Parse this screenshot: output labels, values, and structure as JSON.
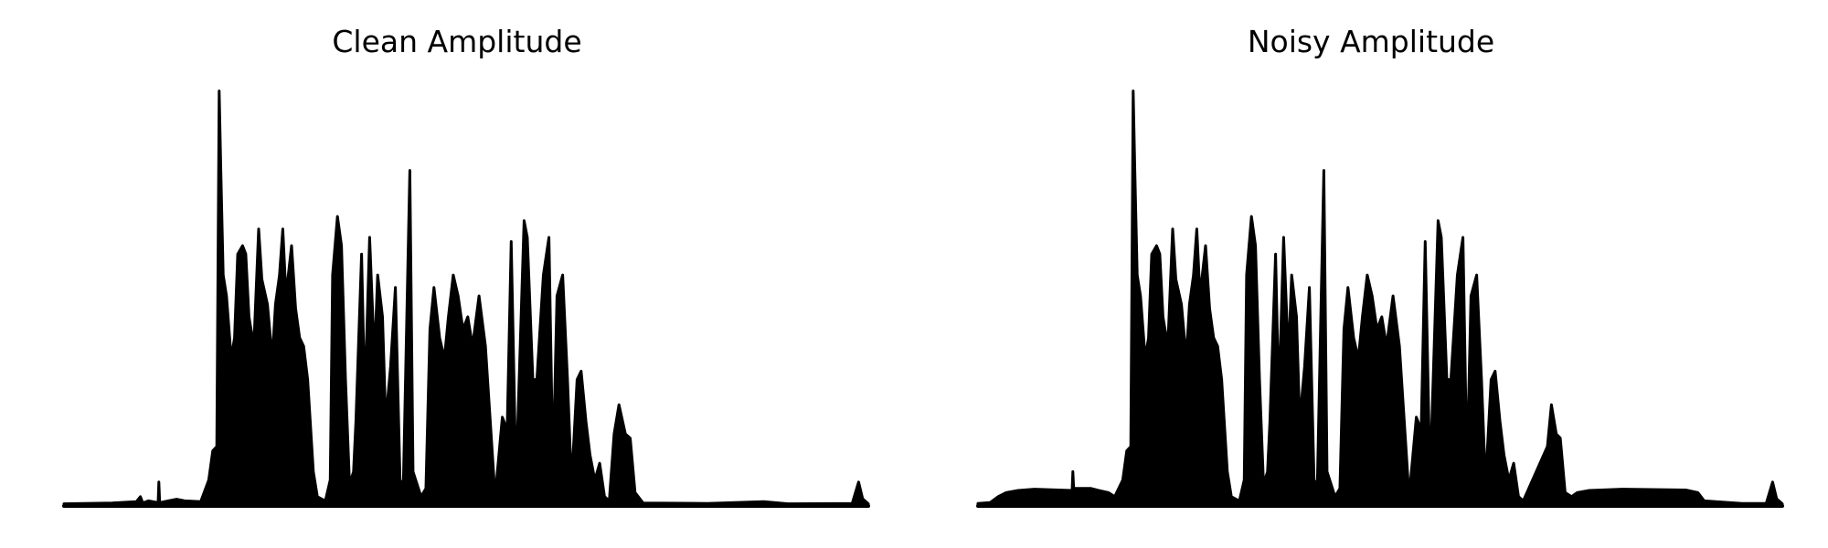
{
  "chart_data": [
    {
      "type": "area",
      "title": "Clean Amplitude",
      "xlabel": "",
      "ylabel": "",
      "axes_visible": false,
      "grid": false,
      "color": "#000000",
      "xlim": [
        0,
        100
      ],
      "ylim": [
        0,
        1
      ],
      "envelope": [
        [
          0,
          0.003
        ],
        [
          6,
          0.005
        ],
        [
          9,
          0.008
        ],
        [
          9.5,
          0.02
        ],
        [
          9.8,
          0.005
        ],
        [
          10.5,
          0.01
        ],
        [
          11.7,
          0.006
        ],
        [
          11.8,
          0.055
        ],
        [
          11.9,
          0.006
        ],
        [
          13,
          0.01
        ],
        [
          14,
          0.014
        ],
        [
          15,
          0.01
        ],
        [
          17,
          0.008
        ],
        [
          18,
          0.06
        ],
        [
          18.5,
          0.13
        ],
        [
          19,
          0.14
        ],
        [
          19.3,
          0.99
        ],
        [
          19.5,
          0.8
        ],
        [
          19.8,
          0.55
        ],
        [
          20.2,
          0.5
        ],
        [
          20.8,
          0.35
        ],
        [
          21.2,
          0.4
        ],
        [
          21.6,
          0.6
        ],
        [
          22.2,
          0.62
        ],
        [
          22.6,
          0.6
        ],
        [
          23,
          0.45
        ],
        [
          23.6,
          0.38
        ],
        [
          24.2,
          0.66
        ],
        [
          24.6,
          0.54
        ],
        [
          25.3,
          0.48
        ],
        [
          25.9,
          0.35
        ],
        [
          26.3,
          0.48
        ],
        [
          26.8,
          0.55
        ],
        [
          27.2,
          0.66
        ],
        [
          27.6,
          0.5
        ],
        [
          28.3,
          0.62
        ],
        [
          28.8,
          0.47
        ],
        [
          29.3,
          0.4
        ],
        [
          29.8,
          0.38
        ],
        [
          30.3,
          0.3
        ],
        [
          31,
          0.08
        ],
        [
          31.5,
          0.02
        ],
        [
          32.5,
          0.01
        ],
        [
          33.1,
          0.06
        ],
        [
          33.4,
          0.55
        ],
        [
          34,
          0.69
        ],
        [
          34.5,
          0.62
        ],
        [
          35,
          0.3
        ],
        [
          35.5,
          0.05
        ],
        [
          36,
          0.08
        ],
        [
          36.3,
          0.2
        ],
        [
          37,
          0.6
        ],
        [
          37.4,
          0.25
        ],
        [
          38,
          0.64
        ],
        [
          38.6,
          0.35
        ],
        [
          39,
          0.55
        ],
        [
          39.6,
          0.45
        ],
        [
          40,
          0.2
        ],
        [
          40.6,
          0.33
        ],
        [
          41.2,
          0.52
        ],
        [
          41.8,
          0.05
        ],
        [
          42.2,
          0.06
        ],
        [
          43,
          0.8
        ],
        [
          43.4,
          0.08
        ],
        [
          44.4,
          0.02
        ],
        [
          45,
          0.04
        ],
        [
          45.5,
          0.42
        ],
        [
          46,
          0.52
        ],
        [
          46.7,
          0.4
        ],
        [
          47.3,
          0.35
        ],
        [
          47.8,
          0.45
        ],
        [
          48.4,
          0.55
        ],
        [
          49,
          0.5
        ],
        [
          49.6,
          0.42
        ],
        [
          50.2,
          0.45
        ],
        [
          50.8,
          0.38
        ],
        [
          51.6,
          0.5
        ],
        [
          52.4,
          0.38
        ],
        [
          53,
          0.2
        ],
        [
          53.6,
          0.02
        ],
        [
          54.5,
          0.21
        ],
        [
          55.1,
          0.18
        ],
        [
          55.6,
          0.63
        ],
        [
          56.2,
          0.06
        ],
        [
          57.2,
          0.68
        ],
        [
          57.6,
          0.64
        ],
        [
          58.3,
          0.3
        ],
        [
          58.8,
          0.3
        ],
        [
          59.6,
          0.55
        ],
        [
          60.3,
          0.64
        ],
        [
          60.8,
          0.08
        ],
        [
          61.3,
          0.5
        ],
        [
          62,
          0.55
        ],
        [
          62.6,
          0.3
        ],
        [
          63.1,
          0.05
        ],
        [
          63.8,
          0.3
        ],
        [
          64.3,
          0.32
        ],
        [
          64.9,
          0.2
        ],
        [
          65.4,
          0.12
        ],
        [
          66,
          0.06
        ],
        [
          66.6,
          0.1
        ],
        [
          67.2,
          0.02
        ],
        [
          67.8,
          0.01
        ],
        [
          68.4,
          0.17
        ],
        [
          69,
          0.24
        ],
        [
          69.8,
          0.17
        ],
        [
          70.4,
          0.16
        ],
        [
          71,
          0.03
        ],
        [
          72,
          0.005
        ],
        [
          80,
          0.004
        ],
        [
          87,
          0.008
        ],
        [
          90,
          0.003
        ],
        [
          98,
          0.004
        ],
        [
          98.8,
          0.055
        ],
        [
          99.3,
          0.015
        ],
        [
          100,
          0.003
        ]
      ]
    },
    {
      "type": "area",
      "title": "Noisy Amplitude",
      "xlabel": "",
      "ylabel": "",
      "axes_visible": false,
      "grid": false,
      "color": "#000000",
      "xlim": [
        0,
        100
      ],
      "ylim": [
        0,
        1
      ],
      "envelope": [
        [
          0,
          0.004
        ],
        [
          1.5,
          0.006
        ],
        [
          2.5,
          0.02
        ],
        [
          3.5,
          0.03
        ],
        [
          5,
          0.035
        ],
        [
          7,
          0.038
        ],
        [
          11.7,
          0.035
        ],
        [
          11.8,
          0.08
        ],
        [
          11.9,
          0.04
        ],
        [
          14,
          0.04
        ],
        [
          15,
          0.035
        ],
        [
          16.2,
          0.03
        ],
        [
          17,
          0.02
        ],
        [
          18,
          0.06
        ],
        [
          18.5,
          0.13
        ],
        [
          19,
          0.14
        ],
        [
          19.3,
          0.99
        ],
        [
          19.5,
          0.8
        ],
        [
          19.8,
          0.55
        ],
        [
          20.2,
          0.5
        ],
        [
          20.8,
          0.35
        ],
        [
          21.2,
          0.4
        ],
        [
          21.6,
          0.6
        ],
        [
          22.2,
          0.62
        ],
        [
          22.6,
          0.6
        ],
        [
          23,
          0.45
        ],
        [
          23.6,
          0.38
        ],
        [
          24.2,
          0.66
        ],
        [
          24.6,
          0.54
        ],
        [
          25.3,
          0.48
        ],
        [
          25.9,
          0.35
        ],
        [
          26.3,
          0.48
        ],
        [
          26.8,
          0.55
        ],
        [
          27.2,
          0.66
        ],
        [
          27.6,
          0.5
        ],
        [
          28.3,
          0.62
        ],
        [
          28.8,
          0.47
        ],
        [
          29.3,
          0.4
        ],
        [
          29.8,
          0.38
        ],
        [
          30.3,
          0.3
        ],
        [
          31,
          0.08
        ],
        [
          31.5,
          0.02
        ],
        [
          32.5,
          0.01
        ],
        [
          33.1,
          0.06
        ],
        [
          33.4,
          0.55
        ],
        [
          34,
          0.69
        ],
        [
          34.5,
          0.62
        ],
        [
          35,
          0.3
        ],
        [
          35.5,
          0.05
        ],
        [
          36,
          0.08
        ],
        [
          36.3,
          0.2
        ],
        [
          37,
          0.6
        ],
        [
          37.4,
          0.25
        ],
        [
          38,
          0.64
        ],
        [
          38.6,
          0.35
        ],
        [
          39,
          0.55
        ],
        [
          39.6,
          0.45
        ],
        [
          40,
          0.2
        ],
        [
          40.6,
          0.33
        ],
        [
          41.2,
          0.52
        ],
        [
          41.8,
          0.05
        ],
        [
          42.2,
          0.06
        ],
        [
          43,
          0.8
        ],
        [
          43.4,
          0.08
        ],
        [
          44.4,
          0.02
        ],
        [
          45,
          0.04
        ],
        [
          45.5,
          0.42
        ],
        [
          46,
          0.52
        ],
        [
          46.7,
          0.4
        ],
        [
          47.3,
          0.35
        ],
        [
          47.8,
          0.45
        ],
        [
          48.4,
          0.55
        ],
        [
          49,
          0.5
        ],
        [
          49.6,
          0.42
        ],
        [
          50.2,
          0.45
        ],
        [
          50.8,
          0.38
        ],
        [
          51.6,
          0.5
        ],
        [
          52.4,
          0.38
        ],
        [
          53,
          0.2
        ],
        [
          53.6,
          0.02
        ],
        [
          54.5,
          0.21
        ],
        [
          55.1,
          0.18
        ],
        [
          55.6,
          0.63
        ],
        [
          56.2,
          0.06
        ],
        [
          57.2,
          0.68
        ],
        [
          57.6,
          0.64
        ],
        [
          58.3,
          0.3
        ],
        [
          58.8,
          0.3
        ],
        [
          59.6,
          0.55
        ],
        [
          60.3,
          0.64
        ],
        [
          60.8,
          0.08
        ],
        [
          61.3,
          0.5
        ],
        [
          62,
          0.55
        ],
        [
          62.6,
          0.3
        ],
        [
          63.1,
          0.05
        ],
        [
          63.8,
          0.3
        ],
        [
          64.3,
          0.32
        ],
        [
          64.9,
          0.2
        ],
        [
          65.4,
          0.12
        ],
        [
          66,
          0.06
        ],
        [
          66.6,
          0.1
        ],
        [
          67.2,
          0.02
        ],
        [
          67.8,
          0.01
        ],
        [
          70.8,
          0.14
        ],
        [
          71.3,
          0.24
        ],
        [
          71.9,
          0.17
        ],
        [
          72.4,
          0.16
        ],
        [
          73,
          0.03
        ],
        [
          73.8,
          0.02
        ],
        [
          74.5,
          0.03
        ],
        [
          76,
          0.035
        ],
        [
          80,
          0.038
        ],
        [
          88,
          0.036
        ],
        [
          89.5,
          0.03
        ],
        [
          90.3,
          0.01
        ],
        [
          95,
          0.004
        ],
        [
          98,
          0.004
        ],
        [
          98.8,
          0.055
        ],
        [
          99.3,
          0.015
        ],
        [
          100,
          0.003
        ]
      ]
    }
  ]
}
